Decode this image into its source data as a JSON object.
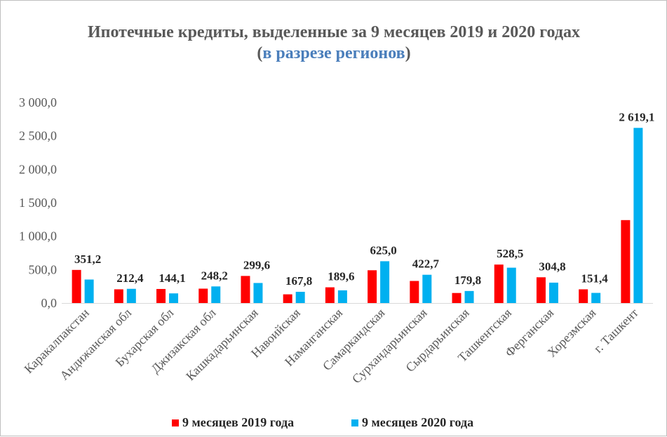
{
  "chart_data": {
    "type": "bar",
    "title": "Ипотечные кредиты, выделенные за 9 месяцев 2019 и 2020 годах",
    "subtitle_open": "(",
    "subtitle": "в разрезе регионов",
    "subtitle_close": ")",
    "xlabel": "",
    "ylabel": "",
    "ylim": [
      0,
      3000
    ],
    "y_ticks": [
      0,
      500,
      1000,
      1500,
      2000,
      2500,
      3000
    ],
    "y_tick_labels": [
      "0,0",
      "500,0",
      "1 000,0",
      "1 500,0",
      "2 000,0",
      "2 500,0",
      "3 000,0"
    ],
    "grid": false,
    "legend_position": "bottom",
    "categories": [
      "Каракалпакстан",
      "Андижанская обл",
      "Бухарская обл",
      "Джизакская обл",
      "Кашкадарьинская",
      "Навоийская",
      "Наманганская",
      "Самаркандская",
      "Сурхандарьинская",
      "Сырдарьинская",
      "Ташкентская",
      "Ферганская",
      "Хорезмская",
      "г. Ташкент"
    ],
    "series": [
      {
        "name": "9 месяцев 2019 года",
        "color": "#ff0000",
        "values": [
          495,
          205,
          210,
          215,
          405,
          130,
          235,
          490,
          330,
          150,
          575,
          385,
          205,
          1240
        ]
      },
      {
        "name": "9 месяцев 2020 года",
        "color": "#00b0f0",
        "values": [
          351.2,
          212.4,
          144.1,
          248.2,
          299.6,
          167.8,
          189.6,
          625.0,
          422.7,
          179.8,
          528.5,
          304.8,
          151.4,
          2619.1
        ],
        "data_labels": [
          "351,2",
          "212,4",
          "144,1",
          "248,2",
          "299,6",
          "167,8",
          "189,6",
          "625,0",
          "422,7",
          "179,8",
          "528,5",
          "304,8",
          "151,4",
          "2 619,1"
        ]
      }
    ],
    "subtitle_color": "#4a7ebb"
  }
}
